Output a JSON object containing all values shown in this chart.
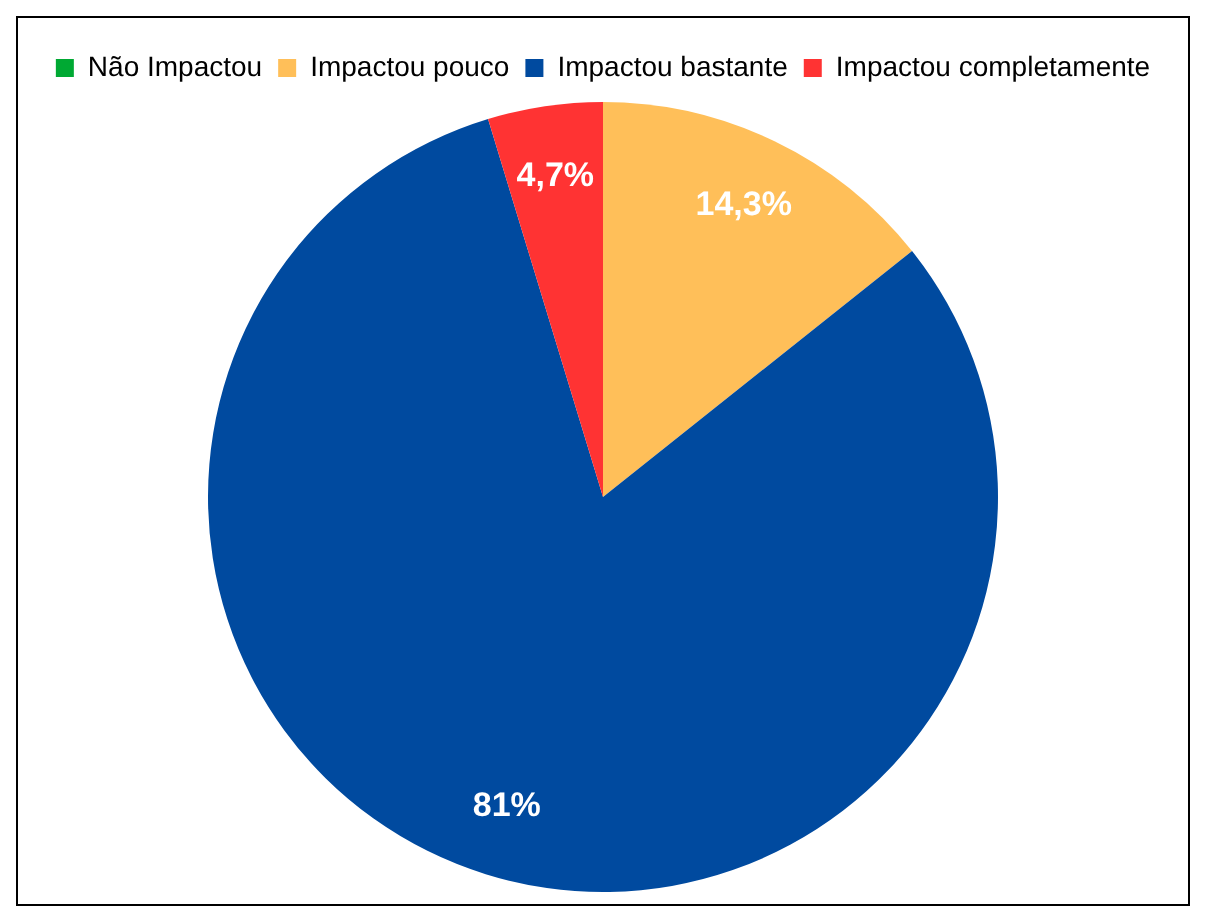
{
  "chart_data": {
    "type": "pie",
    "categories": [
      "Não Impactou",
      "Impactou pouco",
      "Impactou bastante",
      "Impactou completamente"
    ],
    "values": [
      0,
      14.3,
      81,
      4.7
    ],
    "colors": [
      "#00a933",
      "#ffbf59",
      "#004a9f",
      "#ff3333"
    ],
    "value_labels": [
      null,
      "14,3%",
      "81%",
      "4,7%"
    ],
    "legend": "top"
  }
}
